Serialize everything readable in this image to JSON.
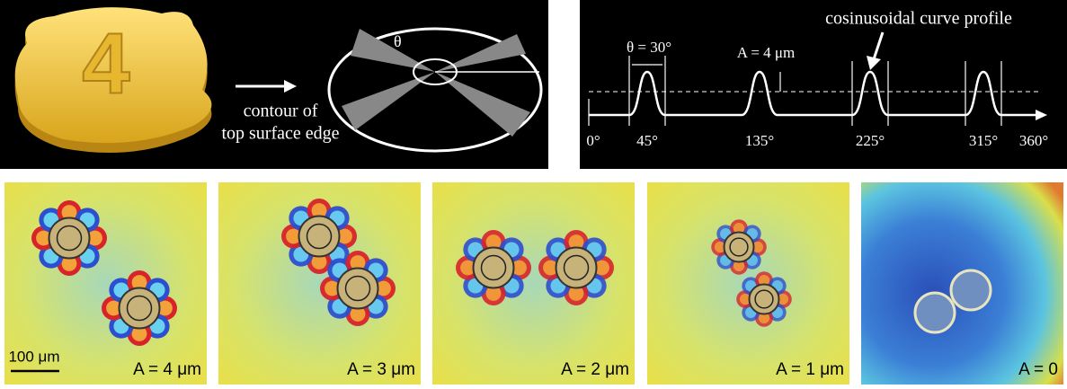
{
  "top_left": {
    "caption_lines": [
      "contour of",
      "top surface edge"
    ],
    "digit": "4",
    "angle_symbol": "θ"
  },
  "top_right": {
    "title": "cosinusoidal curve profile",
    "width_label": "θ = 30°",
    "amplitude_label": "A = 4 μm",
    "axis_labels": [
      "0°",
      "45°",
      "135°",
      "225°",
      "315°",
      "360°"
    ]
  },
  "bottom": {
    "scale_bar": "100 μm",
    "panels": [
      {
        "label": "A = 4 μm"
      },
      {
        "label": "A = 3 μm"
      },
      {
        "label": "A = 2 μm"
      },
      {
        "label": "A = 1 μm"
      },
      {
        "label": "A = 0"
      }
    ]
  }
}
